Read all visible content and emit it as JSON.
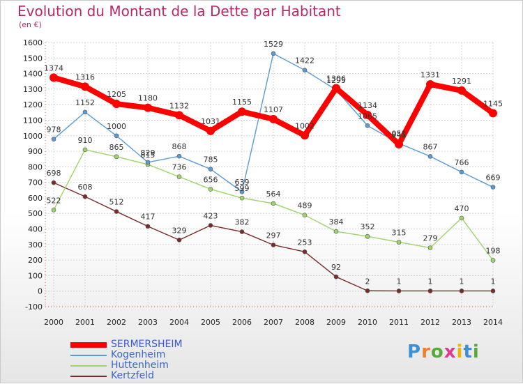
{
  "title": "Evolution du Montant de la Dette par Habitant",
  "unit_label": "(en €)",
  "logo_text": "Proxiti",
  "chart_data": {
    "type": "line",
    "title": "Evolution du Montant de la Dette par Habitant",
    "ylabel": "(en €)",
    "xlabel": "",
    "x": [
      "2000",
      "2001",
      "2002",
      "2003",
      "2004",
      "2005",
      "2006",
      "2007",
      "2008",
      "2009",
      "2010",
      "2011",
      "2012",
      "2013",
      "2014"
    ],
    "ylim": [
      -100,
      1600
    ],
    "yticks": [
      -100,
      0,
      100,
      200,
      300,
      400,
      500,
      600,
      700,
      800,
      900,
      1000,
      1100,
      1200,
      1300,
      1400,
      1500,
      1600
    ],
    "grid": true,
    "legend_position": "bottom-left",
    "series": [
      {
        "name": "SERMERSHEIM",
        "color": "#ff0000",
        "values": [
          1374,
          1316,
          1205,
          1180,
          1132,
          1031,
          1155,
          1107,
          1002,
          1306,
          1134,
          945,
          1331,
          1291,
          1145
        ]
      },
      {
        "name": "Kogenheim",
        "color": "#5a9bd5",
        "values": [
          978,
          1152,
          1000,
          829,
          868,
          785,
          639,
          1529,
          1422,
          1295,
          1065,
          951,
          867,
          766,
          669
        ]
      },
      {
        "name": "Huttenheim",
        "color": "#9fd36b",
        "values": [
          522,
          910,
          865,
          815,
          736,
          656,
          599,
          564,
          489,
          384,
          352,
          315,
          279,
          470,
          198
        ]
      },
      {
        "name": "Kertzfeld",
        "color": "#7a2a2a",
        "values": [
          698,
          608,
          512,
          417,
          329,
          423,
          382,
          297,
          253,
          92,
          2,
          1,
          1,
          1,
          1
        ]
      }
    ]
  }
}
